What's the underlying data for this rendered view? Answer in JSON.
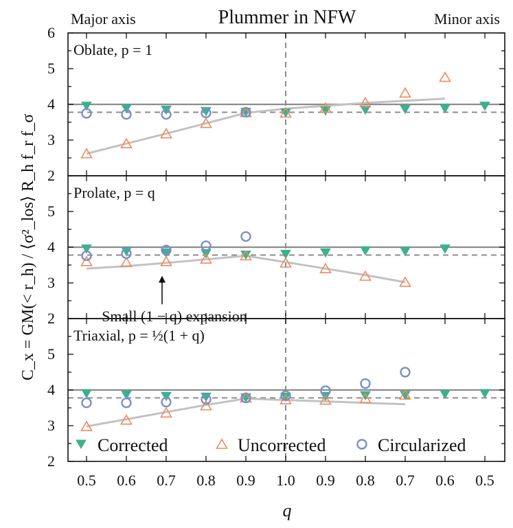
{
  "chart_data": {
    "type": "scatter",
    "title": "Plummer in NFW",
    "left_note": "Major axis",
    "right_note": "Minor axis",
    "xlabel": "q",
    "ylabel": "C_x = GM(< r_h) / ⟨σ²_los⟩ R_h f_r f_σ",
    "x_tick_labels": [
      "0.5",
      "0.6",
      "0.7",
      "0.8",
      "0.9",
      "1.0",
      "0.9",
      "0.8",
      "0.7",
      "0.6",
      "0.5"
    ],
    "reference_lines": {
      "solid": 4.0,
      "dashed": 3.78,
      "vertical_dashed_at_index": 5
    },
    "legend": [
      {
        "name": "Corrected",
        "marker": "triangle-down",
        "color": "#3db08e"
      },
      {
        "name": "Uncorrected",
        "marker": "triangle-up",
        "color": "#f08a5d"
      },
      {
        "name": "Circularized",
        "marker": "circle",
        "color": "#7b8fc7"
      }
    ],
    "panels": [
      {
        "label": "Oblate, p = 1",
        "ylim": [
          2,
          6
        ],
        "y_ticks": [
          "2",
          "3",
          "4",
          "5",
          "6"
        ],
        "series": [
          {
            "name": "Corrected",
            "values": [
              3.95,
              3.88,
              3.84,
              3.8,
              3.78,
              3.76,
              3.82,
              3.84,
              3.86,
              3.88,
              3.95
            ]
          },
          {
            "name": "Uncorrected",
            "values": [
              2.62,
              2.9,
              3.18,
              3.47,
              3.77,
              3.76,
              3.9,
              4.05,
              4.32,
              4.76,
              null
            ]
          },
          {
            "name": "Circularized",
            "values": [
              3.75,
              3.72,
              3.72,
              3.76,
              3.78,
              null,
              null,
              null,
              null,
              null,
              null
            ]
          },
          {
            "name": "Expansion",
            "values": [
              2.62,
              2.9,
              3.18,
              3.47,
              3.76,
              3.88,
              3.96,
              4.04,
              4.1,
              4.16,
              null
            ]
          }
        ]
      },
      {
        "label": "Prolate, p = q",
        "ylim": [
          2,
          6
        ],
        "y_ticks": [
          "2",
          "3",
          "4",
          "5"
        ],
        "annotation": "Small (1 − q) expansion",
        "series": [
          {
            "name": "Corrected",
            "values": [
              3.95,
              3.88,
              3.84,
              3.82,
              3.78,
              3.8,
              3.84,
              3.9,
              3.88,
              3.95,
              null
            ]
          },
          {
            "name": "Uncorrected",
            "values": [
              3.6,
              3.57,
              3.6,
              3.67,
              3.76,
              3.56,
              3.4,
              3.19,
              3.02,
              null,
              null
            ]
          },
          {
            "name": "Circularized",
            "values": [
              3.76,
              3.82,
              3.92,
              4.04,
              4.3,
              null,
              null,
              null,
              null,
              null,
              null
            ]
          },
          {
            "name": "Expansion",
            "values": [
              3.4,
              3.47,
              3.56,
              3.66,
              3.76,
              3.58,
              3.4,
              3.22,
              3.02,
              null,
              null
            ]
          }
        ]
      },
      {
        "label": "Triaxial, p = ½(1 + q)",
        "ylim": [
          2,
          6
        ],
        "y_ticks": [
          "2",
          "3",
          "4",
          "5"
        ],
        "series": [
          {
            "name": "Corrected",
            "values": [
              3.9,
              3.86,
              3.82,
              3.8,
              3.78,
              3.8,
              3.82,
              3.84,
              3.85,
              3.88,
              3.9
            ]
          },
          {
            "name": "Uncorrected",
            "values": [
              2.98,
              3.16,
              3.36,
              3.56,
              3.78,
              3.73,
              3.72,
              3.76,
              3.86,
              null,
              null
            ]
          },
          {
            "name": "Circularized",
            "values": [
              3.64,
              3.64,
              3.66,
              3.74,
              3.78,
              3.84,
              3.98,
              4.18,
              4.5,
              null,
              null
            ]
          },
          {
            "name": "Expansion",
            "values": [
              2.98,
              3.18,
              3.38,
              3.58,
              3.76,
              3.72,
              3.68,
              3.64,
              3.6,
              null,
              null
            ]
          }
        ]
      }
    ]
  }
}
